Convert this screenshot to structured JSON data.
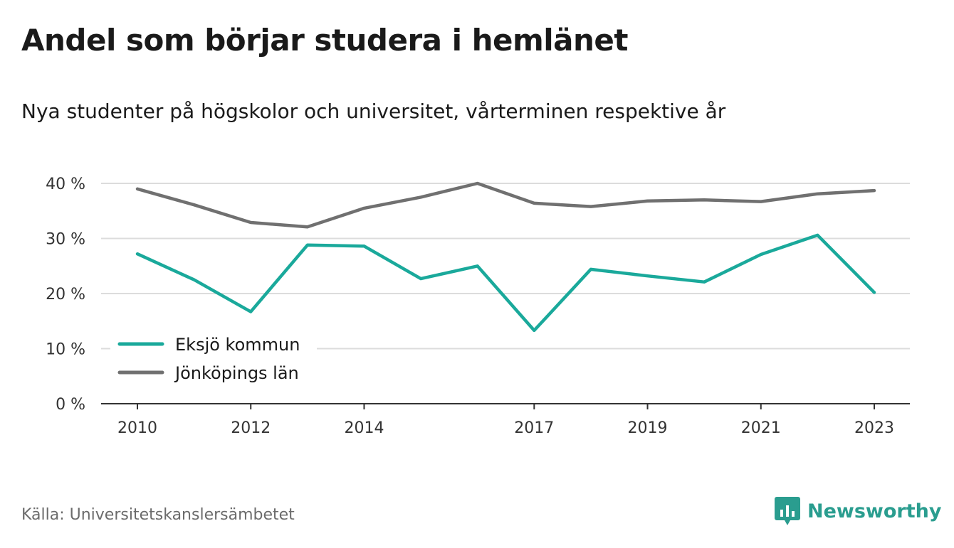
{
  "header": {
    "title": "Andel som börjar studera i hemlänet",
    "subtitle": "Nya studenter på högskolor och universitet, vårterminen respektive år"
  },
  "footer": {
    "source": "Källa: Universitetskanslersämbetet",
    "brand": "Newsworthy",
    "brand_icon": "bar-chart-speech-bubble-icon"
  },
  "colors": {
    "eksjo": "#1aa99b",
    "jonkoping": "#707070",
    "grid": "#dcdcdc",
    "axis": "#333333",
    "brand": "#2a9d8f"
  },
  "chart_data": {
    "type": "line",
    "title": "Andel som börjar studera i hemlänet",
    "subtitle": "Nya studenter på högskolor och universitet, vårterminen respektive år",
    "x": [
      2010,
      2011,
      2012,
      2013,
      2014,
      2015,
      2016,
      2017,
      2018,
      2019,
      2020,
      2021,
      2022,
      2023
    ],
    "x_tick_labels": [
      "2010",
      "2012",
      "2014",
      "2017",
      "2019",
      "2021",
      "2023"
    ],
    "y_ticks": [
      0,
      10,
      20,
      30,
      40
    ],
    "y_tick_labels": [
      "0 %",
      "10 %",
      "20 %",
      "30 %",
      "40 %"
    ],
    "ylim": [
      0,
      40
    ],
    "grid": true,
    "legend_position": "bottom-left",
    "series": [
      {
        "name": "Eksjö kommun",
        "color_key": "eksjo",
        "values": [
          27.2,
          22.5,
          16.7,
          28.8,
          28.6,
          22.7,
          25.0,
          13.3,
          24.4,
          23.2,
          22.1,
          27.1,
          30.6,
          20.2
        ]
      },
      {
        "name": "Jönköpings län",
        "color_key": "jonkoping",
        "values": [
          39.0,
          36.1,
          32.9,
          32.1,
          35.5,
          37.5,
          40.0,
          36.4,
          35.8,
          36.8,
          37.0,
          36.7,
          38.1,
          38.7
        ]
      }
    ]
  }
}
